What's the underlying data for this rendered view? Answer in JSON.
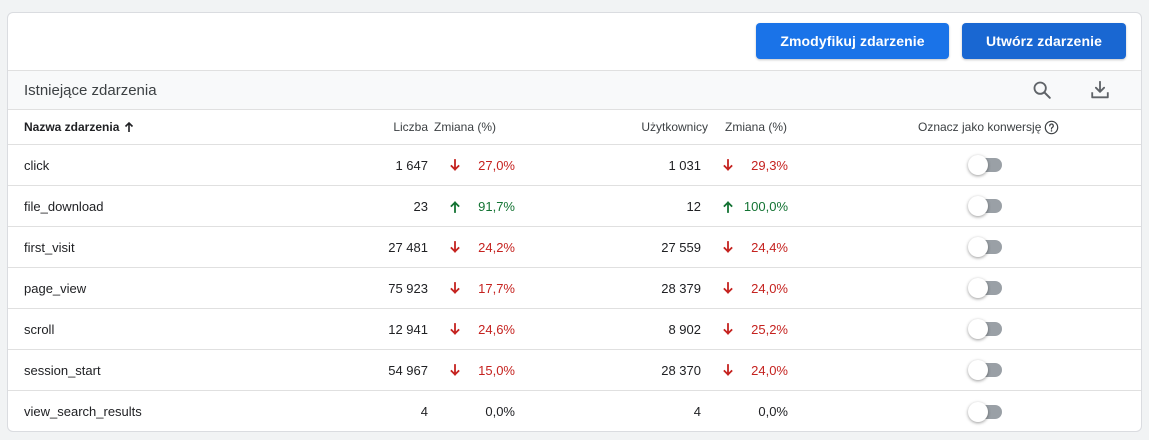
{
  "toolbar": {
    "modify_label": "Zmodyfikuj zdarzenie",
    "create_label": "Utwórz zdarzenie"
  },
  "section": {
    "title": "Istniejące zdarzenia",
    "search_icon": "search-icon",
    "download_icon": "download-icon"
  },
  "table": {
    "columns": {
      "name": "Nazwa zdarzenia",
      "count": "Liczba",
      "change_count": "Zmiana (%)",
      "users": "Użytkownicy",
      "change_users": "Zmiana (%)",
      "conversion": "Oznacz jako konwersję"
    },
    "rows": [
      {
        "name": "click",
        "count": "1 647",
        "count_change": "27,0%",
        "count_trend": "down",
        "users": "1 031",
        "users_change": "29,3%",
        "users_trend": "down",
        "conversion": false
      },
      {
        "name": "file_download",
        "count": "23",
        "count_change": "91,7%",
        "count_trend": "up",
        "users": "12",
        "users_change": "100,0%",
        "users_trend": "up",
        "conversion": false
      },
      {
        "name": "first_visit",
        "count": "27 481",
        "count_change": "24,2%",
        "count_trend": "down",
        "users": "27 559",
        "users_change": "24,4%",
        "users_trend": "down",
        "conversion": false
      },
      {
        "name": "page_view",
        "count": "75 923",
        "count_change": "17,7%",
        "count_trend": "down",
        "users": "28 379",
        "users_change": "24,0%",
        "users_trend": "down",
        "conversion": false
      },
      {
        "name": "scroll",
        "count": "12 941",
        "count_change": "24,6%",
        "count_trend": "down",
        "users": "8 902",
        "users_change": "25,2%",
        "users_trend": "down",
        "conversion": false
      },
      {
        "name": "session_start",
        "count": "54 967",
        "count_change": "15,0%",
        "count_trend": "down",
        "users": "28 370",
        "users_change": "24,0%",
        "users_trend": "down",
        "conversion": false
      },
      {
        "name": "view_search_results",
        "count": "4",
        "count_change": "0,0%",
        "count_trend": "none",
        "users": "4",
        "users_change": "0,0%",
        "users_trend": "none",
        "conversion": false
      }
    ]
  },
  "colors": {
    "primary_button": "#1a73e8",
    "secondary_button": "#1967d2",
    "trend_down": "#c5221f",
    "trend_up": "#137333",
    "toggle_off": "#9aa0a6"
  }
}
